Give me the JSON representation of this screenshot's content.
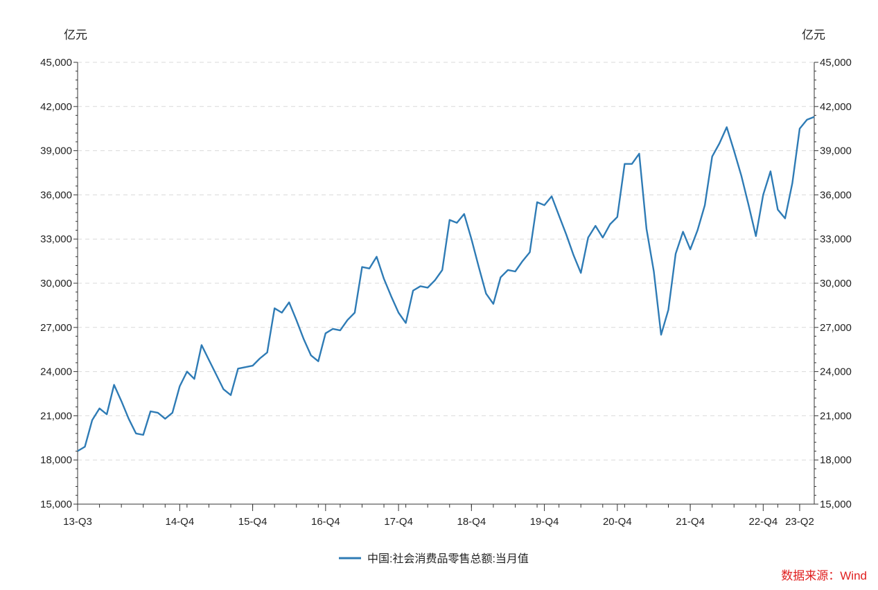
{
  "chart_data": {
    "type": "line",
    "title": "",
    "y_unit_left": "亿元",
    "y_unit_right": "亿元",
    "ylim": [
      15000,
      45000
    ],
    "y_ticks": [
      "15,000",
      "18,000",
      "21,000",
      "24,000",
      "27,000",
      "30,000",
      "33,000",
      "36,000",
      "39,000",
      "42,000",
      "45,000"
    ],
    "x_tick_labels": [
      {
        "label": "13-Q3",
        "month_index": 0
      },
      {
        "label": "14-Q4",
        "month_index": 14
      },
      {
        "label": "15-Q4",
        "month_index": 24
      },
      {
        "label": "16-Q4",
        "month_index": 34
      },
      {
        "label": "17-Q4",
        "month_index": 44
      },
      {
        "label": "18-Q4",
        "month_index": 54
      },
      {
        "label": "19-Q4",
        "month_index": 64
      },
      {
        "label": "20-Q4",
        "month_index": 74
      },
      {
        "label": "21-Q4",
        "month_index": 84
      },
      {
        "label": "22-Q4",
        "month_index": 94
      },
      {
        "label": "23-Q2",
        "month_index": 99
      }
    ],
    "grid": true,
    "legend_position": "bottom-center",
    "series": [
      {
        "name": "中国:社会消费品零售总额:当月值",
        "color": "#2e7bb5",
        "values": [
          18600,
          18900,
          20700,
          21500,
          21100,
          23100,
          22000,
          20800,
          19800,
          19700,
          21300,
          21200,
          20800,
          21200,
          23000,
          24000,
          23500,
          25800,
          24800,
          23800,
          22800,
          22400,
          24200,
          24300,
          24400,
          24900,
          25300,
          28300,
          28000,
          28700,
          27500,
          26200,
          25100,
          24700,
          26600,
          26900,
          26800,
          27500,
          28000,
          31100,
          31000,
          31800,
          30300,
          29100,
          28000,
          27300,
          29500,
          29800,
          29700,
          30200,
          30900,
          34300,
          34100,
          34700,
          33000,
          31100,
          29300,
          28600,
          30400,
          30900,
          30800,
          31500,
          32100,
          35500,
          35300,
          35900,
          34600,
          33300,
          31900,
          30700,
          33100,
          33900,
          33100,
          34000,
          34500,
          38100,
          38100,
          38800,
          33700,
          30800,
          26500,
          28200,
          32000,
          33500,
          32300,
          33600,
          35300,
          38600,
          39500,
          40600,
          39000,
          37300,
          35300,
          33200,
          36000,
          37600,
          35000,
          34400,
          36800,
          40500,
          41100,
          41300
        ],
        "values_note": ""
      }
    ]
  },
  "source": {
    "label": "数据来源：Wind",
    "color": "#e02020"
  }
}
